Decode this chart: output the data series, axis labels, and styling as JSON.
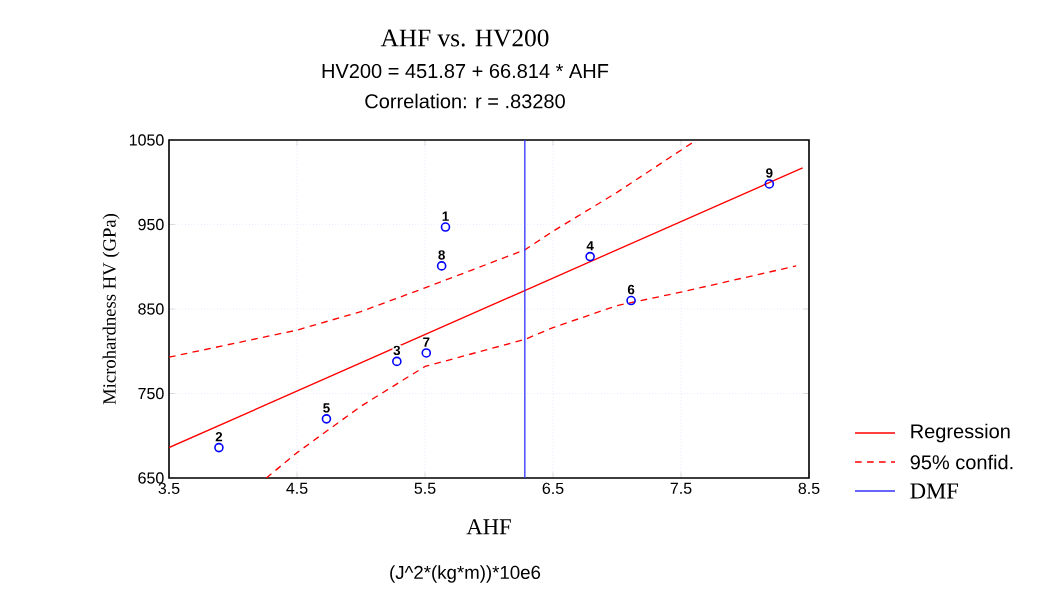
{
  "chart_data": {
    "type": "scatter",
    "title": "AHF vs. HV200",
    "subtitle": "HV200 = 451.87 + 66.814 * AHF",
    "annotations": [
      "Correlation: r = .83280",
      "(J^2*(kg*m))*10e6",
      {
        "text": "1",
        "x": 5.66,
        "y": 947
      },
      {
        "text": "2",
        "x": 3.89,
        "y": 686
      },
      {
        "text": "3",
        "x": 5.28,
        "y": 788
      },
      {
        "text": "4",
        "x": 6.79,
        "y": 912
      },
      {
        "text": "5",
        "x": 4.73,
        "y": 720
      },
      {
        "text": "6",
        "x": 7.11,
        "y": 860
      },
      {
        "text": "7",
        "x": 5.51,
        "y": 798
      },
      {
        "text": "8",
        "x": 5.63,
        "y": 901
      },
      {
        "text": "9",
        "x": 8.19,
        "y": 998
      }
    ],
    "xlabel": "AHF",
    "ylabel": "Microhardness HV (GPa)",
    "xlim": [
      3.5,
      8.5
    ],
    "ylim": [
      650,
      1050
    ],
    "xticks": [
      3.5,
      4.5,
      5.5,
      6.5,
      7.5,
      8.5
    ],
    "yticks": [
      650,
      750,
      850,
      950,
      1050
    ],
    "grid": true,
    "legend": "right",
    "series": [
      {
        "color": "#0000ff",
        "marker": "circle",
        "x": [
          5.66,
          3.89,
          5.28,
          6.79,
          4.73,
          7.11,
          5.51,
          5.63,
          8.19
        ],
        "values": [
          947,
          686,
          788,
          912,
          720,
          860,
          798,
          901,
          998
        ]
      },
      {
        "type": "line",
        "name": "Regression",
        "color": "#ff0000",
        "line_style": "solid",
        "x": [
          3.5,
          8.45
        ],
        "values": [
          686,
          1017
        ]
      },
      {
        "type": "line",
        "name": "95% confid.",
        "color": "#ff0000",
        "line_style": "dashed",
        "x": [
          3.5,
          4.5,
          5.0,
          5.5,
          6.28,
          6.5,
          7.0,
          7.62
        ],
        "values": [
          793,
          825,
          847,
          875,
          920,
          942,
          988,
          1050
        ]
      },
      {
        "type": "line",
        "color": "#ff0000",
        "line_style": "dashed",
        "x": [
          4.26,
          4.5,
          5.0,
          5.5,
          6.28,
          6.5,
          7.0,
          7.5,
          8.4
        ],
        "values": [
          650,
          680,
          735,
          782,
          814,
          828,
          854,
          870,
          901
        ]
      },
      {
        "type": "line",
        "name": "DMF",
        "color": "#3333ff",
        "line_style": "solid",
        "x": [
          6.28,
          6.28
        ],
        "values": [
          650,
          1050
        ]
      }
    ]
  }
}
